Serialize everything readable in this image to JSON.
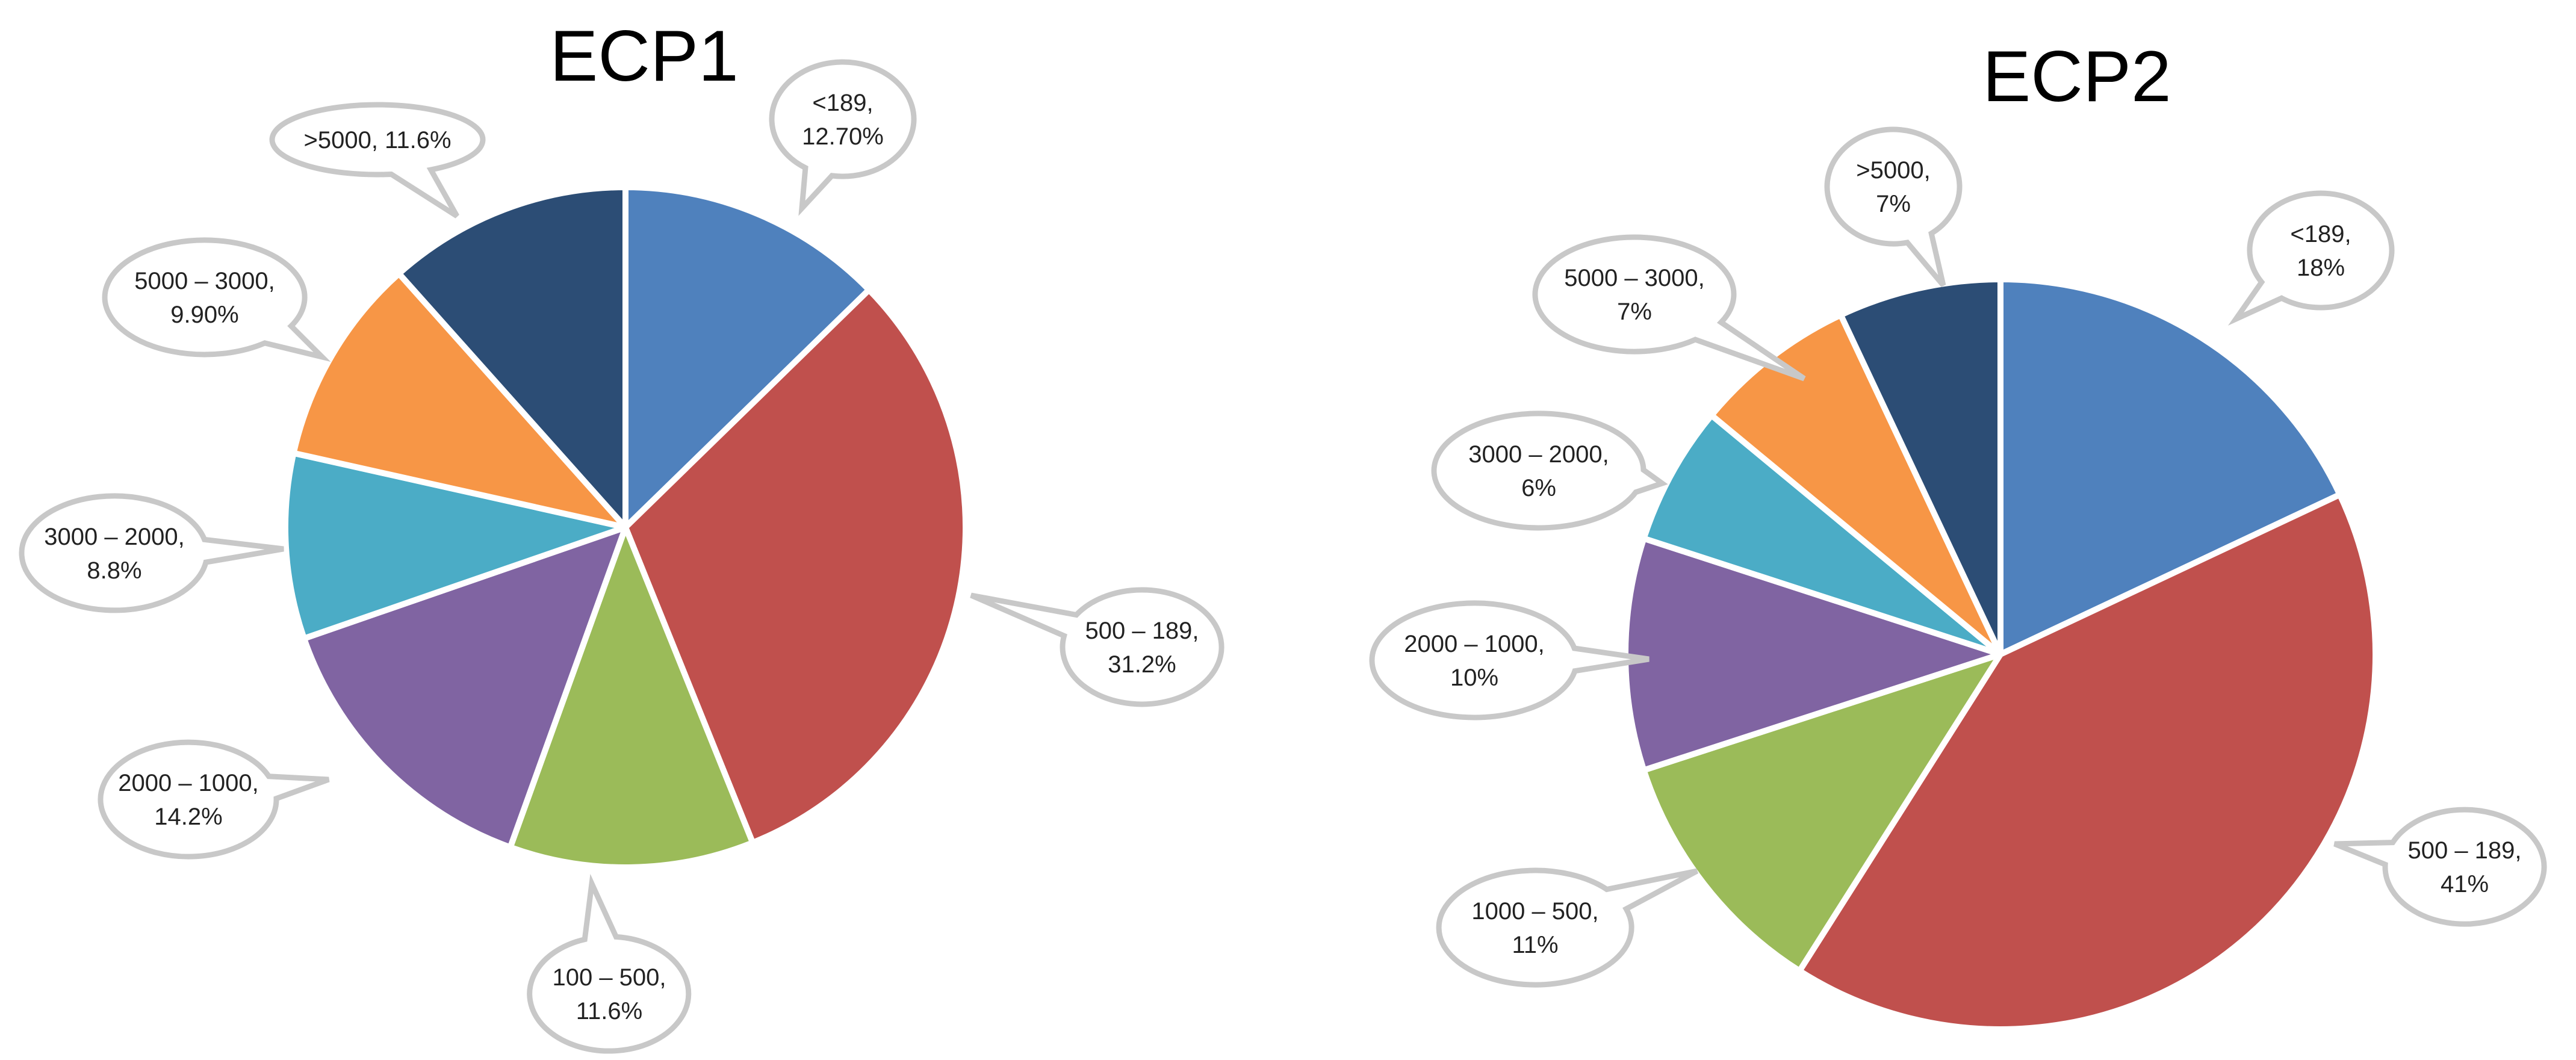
{
  "chart_data": [
    {
      "type": "pie",
      "title": "ECP1",
      "start_angle_deg": 0,
      "direction": "clockwise",
      "slices": [
        {
          "label": "<189",
          "value": 12.7,
          "value_text": "12.70%",
          "color": "#4F81BD",
          "callout_lines": [
            "<189,",
            "12.70%"
          ]
        },
        {
          "label": "500 – 189",
          "value": 31.2,
          "value_text": "31.2%",
          "color": "#C0504D",
          "callout_lines": [
            "500 – 189,",
            "31.2%"
          ]
        },
        {
          "label": "100 – 500",
          "value": 11.6,
          "value_text": "11.6%",
          "color": "#9BBB59",
          "callout_lines": [
            "100 – 500,",
            "11.6%"
          ]
        },
        {
          "label": "2000 – 1000",
          "value": 14.2,
          "value_text": "14.2%",
          "color": "#8064A2",
          "callout_lines": [
            "2000 – 1000,",
            "14.2%"
          ]
        },
        {
          "label": "3000 – 2000",
          "value": 8.8,
          "value_text": "8.8%",
          "color": "#4BACC6",
          "callout_lines": [
            "3000 – 2000,",
            "8.8%"
          ]
        },
        {
          "label": "5000 – 3000",
          "value": 9.9,
          "value_text": "9.90%",
          "color": "#F79646",
          "callout_lines": [
            "5000 – 3000,",
            "9.90%"
          ]
        },
        {
          "label": ">5000",
          "value": 11.6,
          "value_text": "11.6%",
          "color": "#2C4D75",
          "callout_lines": [
            ">5000, 11.6%"
          ]
        }
      ]
    },
    {
      "type": "pie",
      "title": "ECP2",
      "start_angle_deg": 0,
      "direction": "clockwise",
      "slices": [
        {
          "label": "<189",
          "value": 18,
          "value_text": "18%",
          "color": "#4F81BD",
          "callout_lines": [
            "<189,",
            "18%"
          ]
        },
        {
          "label": "500 – 189",
          "value": 41,
          "value_text": "41%",
          "color": "#C0504D",
          "callout_lines": [
            "500 – 189,",
            "41%"
          ]
        },
        {
          "label": "1000 – 500",
          "value": 11,
          "value_text": "11%",
          "color": "#9BBB59",
          "callout_lines": [
            "1000 – 500,",
            "11%"
          ]
        },
        {
          "label": "2000 – 1000",
          "value": 10,
          "value_text": "10%",
          "color": "#8064A2",
          "callout_lines": [
            "2000 – 1000,",
            "10%"
          ]
        },
        {
          "label": "3000 – 2000",
          "value": 6,
          "value_text": "6%",
          "color": "#4BACC6",
          "callout_lines": [
            "3000 – 2000,",
            "6%"
          ]
        },
        {
          "label": "5000 – 3000",
          "value": 7,
          "value_text": "7%",
          "color": "#F79646",
          "callout_lines": [
            "5000 – 3000,",
            "7%"
          ]
        },
        {
          "label": ">5000",
          "value": 7,
          "value_text": "7%",
          "color": "#2C4D75",
          "callout_lines": [
            ">5000,",
            "7%"
          ]
        }
      ]
    }
  ]
}
